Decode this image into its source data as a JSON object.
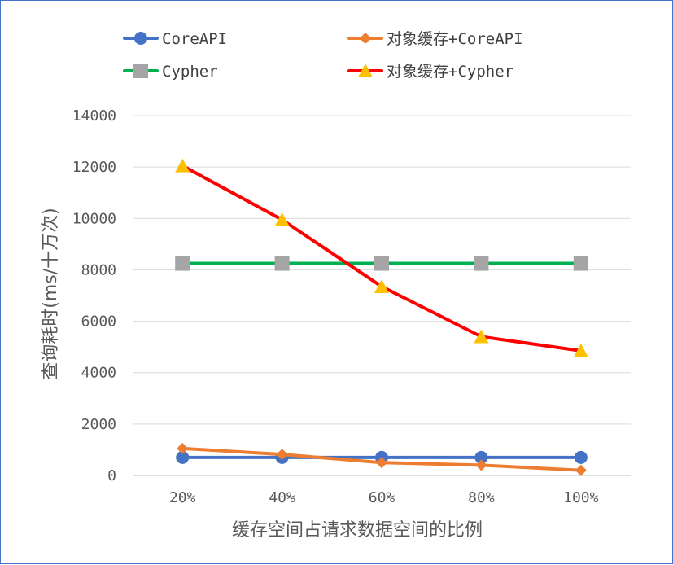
{
  "chart_data": {
    "type": "line",
    "title": "",
    "xlabel": "缓存空间占请求数据空间的比例",
    "ylabel": "查询耗时(ms/十万次)",
    "categories": [
      "20%",
      "40%",
      "60%",
      "80%",
      "100%"
    ],
    "ylim": [
      0,
      14000
    ],
    "yticks": [
      "0",
      "2000",
      "4000",
      "6000",
      "8000",
      "10000",
      "12000",
      "14000"
    ],
    "grid": true,
    "legend_position": "top",
    "series": [
      {
        "name": "CoreAPI",
        "values": [
          700,
          700,
          700,
          700,
          700
        ],
        "color": "#4472c4",
        "marker": "circle"
      },
      {
        "name": "对象缓存+CoreAPI",
        "values": [
          1050,
          820,
          500,
          400,
          200
        ],
        "color": "#ed7d31",
        "marker": "diamond"
      },
      {
        "name": "Cypher",
        "values": [
          8250,
          8250,
          8250,
          8250,
          8250
        ],
        "color": "#00b050",
        "marker": "square",
        "marker_color": "#a5a5a5"
      },
      {
        "name": "对象缓存+Cypher",
        "values": [
          12050,
          9950,
          7350,
          5400,
          4850
        ],
        "color": "#ff0000",
        "marker": "triangle",
        "marker_color": "#ffc000"
      }
    ]
  }
}
